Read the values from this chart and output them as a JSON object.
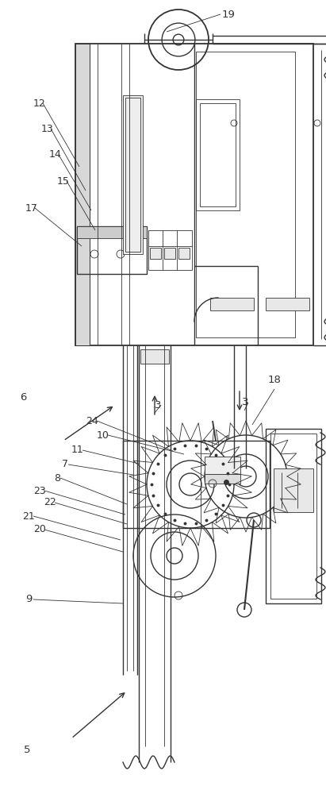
{
  "bg_color": "#ffffff",
  "lc": "#333333",
  "lw": 1.0,
  "tlw": 0.6,
  "fig_w": 4.11,
  "fig_h": 10.0,
  "dpi": 100
}
